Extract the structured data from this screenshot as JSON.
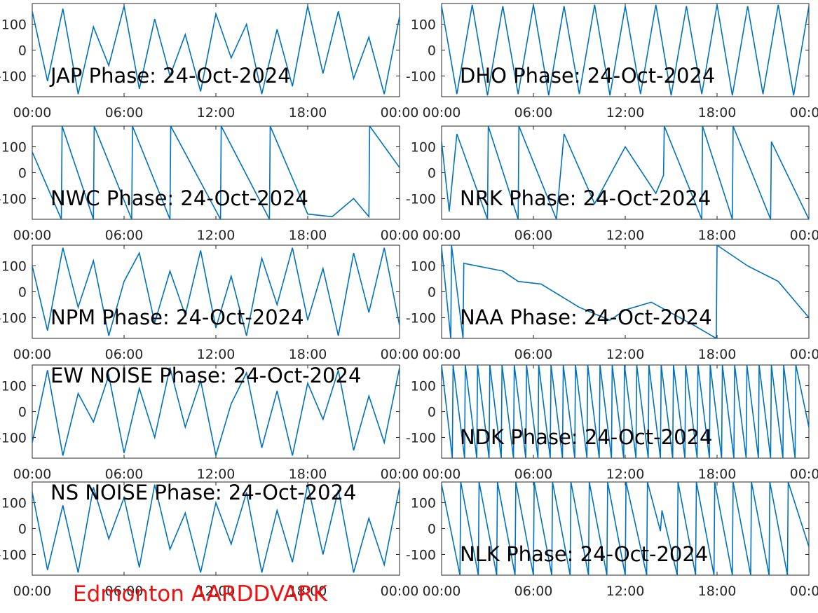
{
  "footer_text": "Edmonton AARDDVARK",
  "footer_color": "#ee1111",
  "line_color": "#0072bd",
  "chart_data": [
    {
      "type": "line",
      "title": "JAP Phase: 24-Oct-2024",
      "x_ticks": [
        "00:00",
        "06:00",
        "12:00",
        "18:00",
        "00:00"
      ],
      "y_ticks": [
        "100",
        "0",
        "-100"
      ],
      "ylim": [
        -180,
        180
      ],
      "x": [
        0,
        1,
        2,
        3,
        4,
        5,
        6,
        7,
        8,
        9,
        10,
        11,
        12,
        13,
        14,
        15,
        16,
        17,
        18,
        19,
        20,
        21,
        22,
        23,
        24
      ],
      "values": [
        150,
        -120,
        160,
        -170,
        90,
        -60,
        170,
        -150,
        120,
        -100,
        60,
        -160,
        140,
        -30,
        100,
        -170,
        80,
        -140,
        170,
        -90,
        150,
        -110,
        50,
        -170,
        130
      ]
    },
    {
      "type": "line",
      "title": "DHO Phase: 24-Oct-2024",
      "x_ticks": [
        "00:00",
        "06:00",
        "12:00",
        "18:00",
        "00:00"
      ],
      "y_ticks": [
        "100",
        "0",
        "-100"
      ],
      "ylim": [
        -180,
        180
      ],
      "x": [
        0,
        1,
        2,
        3,
        4,
        5,
        6,
        7,
        8,
        9,
        10,
        11,
        12,
        13,
        14,
        15,
        16,
        17,
        18,
        19,
        20,
        21,
        22,
        23,
        24
      ],
      "values": [
        170,
        -170,
        175,
        -175,
        170,
        -170,
        175,
        -175,
        170,
        -170,
        175,
        -175,
        170,
        -170,
        175,
        -175,
        170,
        -170,
        175,
        -175,
        170,
        -170,
        175,
        -175,
        170
      ]
    },
    {
      "type": "line",
      "title": "NWC Phase: 24-Oct-2024",
      "x_ticks": [
        "00:00",
        "06:00",
        "12:00",
        "18:00",
        "00:00"
      ],
      "y_ticks": [
        "100",
        "0",
        "-100"
      ],
      "ylim": [
        -180,
        180
      ],
      "x": [
        0,
        1.9,
        1.95,
        4,
        4.05,
        6.5,
        6.55,
        9,
        9.05,
        12.3,
        12.35,
        15.5,
        15.55,
        18,
        19.6,
        21,
        22,
        22.05,
        24
      ],
      "values": [
        80,
        -180,
        180,
        -180,
        180,
        -180,
        180,
        -180,
        180,
        -180,
        180,
        -180,
        180,
        -160,
        -170,
        -100,
        -170,
        180,
        20
      ]
    },
    {
      "type": "line",
      "title": "NRK Phase: 24-Oct-2024",
      "x_ticks": [
        "00:00",
        "06:00",
        "12:00",
        "18:00",
        "00:00"
      ],
      "y_ticks": [
        "100",
        "0",
        "-100"
      ],
      "ylim": [
        -180,
        180
      ],
      "x": [
        0,
        0.5,
        1,
        3,
        3.05,
        5,
        5.05,
        7.5,
        8,
        10,
        12,
        14,
        14.5,
        14.55,
        17,
        17.05,
        19,
        19.05,
        21.5,
        21.55,
        24
      ],
      "values": [
        120,
        -150,
        150,
        -180,
        180,
        -180,
        180,
        -180,
        150,
        -120,
        100,
        -80,
        -10,
        180,
        -180,
        180,
        -180,
        180,
        -180,
        120,
        -180
      ]
    },
    {
      "type": "line",
      "title": "NPM Phase: 24-Oct-2024",
      "x_ticks": [
        "00:00",
        "06:00",
        "12:00",
        "18:00",
        "00:00"
      ],
      "y_ticks": [
        "100",
        "0",
        "-100"
      ],
      "ylim": [
        -180,
        180
      ],
      "x": [
        0,
        1,
        2,
        3,
        4,
        5,
        6,
        7,
        8,
        9,
        10,
        11,
        12,
        13,
        14,
        15,
        16,
        17,
        18,
        19,
        20,
        21,
        22,
        23,
        24
      ],
      "values": [
        100,
        -150,
        170,
        -60,
        120,
        -170,
        40,
        150,
        -120,
        80,
        -90,
        160,
        -140,
        60,
        -170,
        130,
        -50,
        170,
        -110,
        90,
        -170,
        150,
        -80,
        170,
        -130
      ]
    },
    {
      "type": "line",
      "title": "NAA Phase: 24-Oct-2024",
      "x_ticks": [
        "00:00",
        "06:00",
        "12:00",
        "18:00",
        "00:00"
      ],
      "y_ticks": [
        "100",
        "0",
        "-100"
      ],
      "ylim": [
        -180,
        180
      ],
      "x": [
        0,
        0.6,
        0.65,
        1.4,
        1.45,
        4,
        5,
        6.5,
        9,
        11,
        12,
        13.7,
        16.5,
        17.95,
        18,
        20,
        22,
        24
      ],
      "values": [
        170,
        -180,
        180,
        -180,
        110,
        80,
        40,
        30,
        -60,
        -110,
        -70,
        -40,
        -130,
        -180,
        180,
        100,
        40,
        -100
      ]
    },
    {
      "type": "line",
      "title": "EW NOISE Phase: 24-Oct-2024",
      "x_ticks": [
        "00:00",
        "06:00",
        "12:00",
        "18:00",
        "00:00"
      ],
      "y_ticks": [
        "100",
        "0",
        "-100"
      ],
      "ylim": [
        -180,
        180
      ],
      "x": [
        0,
        1,
        2,
        3,
        4,
        5,
        6,
        7,
        8,
        9,
        10,
        11,
        12,
        13,
        14,
        15,
        16,
        17,
        18,
        19,
        20,
        21,
        22,
        23,
        24
      ],
      "values": [
        -120,
        160,
        -170,
        70,
        -40,
        140,
        -160,
        90,
        -100,
        170,
        -60,
        120,
        -170,
        30,
        150,
        -140,
        80,
        -170,
        110,
        -30,
        160,
        -150,
        60,
        -120,
        170
      ]
    },
    {
      "type": "line",
      "title": "NDK Phase: 24-Oct-2024",
      "x_ticks": [
        "00:00",
        "06:00",
        "12:00",
        "18:00",
        "00:00"
      ],
      "y_ticks": [
        "100",
        "0",
        "-100"
      ],
      "ylim": [
        -180,
        180
      ],
      "x": [
        0,
        0.7,
        0.75,
        1.5,
        1.55,
        2.3,
        2.35,
        3.1,
        3.15,
        3.9,
        3.95,
        4.7,
        4.75,
        5.5,
        5.55,
        6.3,
        6.35,
        7.1,
        7.15,
        7.9,
        7.95,
        8.7,
        8.75,
        9.5,
        9.55,
        10.3,
        10.35,
        11.1,
        11.15,
        11.9,
        11.95,
        12.7,
        12.75,
        13.5,
        13.55,
        14.3,
        14.35,
        15.1,
        15.15,
        15.9,
        15.95,
        16.7,
        16.75,
        17.5,
        17.55,
        18.3,
        18.35,
        19.1,
        19.15,
        19.9,
        19.95,
        20.7,
        20.75,
        21.5,
        21.55,
        22.3,
        22.35,
        23.1,
        23.15,
        24
      ],
      "values": [
        180,
        -180,
        180,
        -180,
        180,
        -180,
        180,
        -180,
        180,
        -180,
        180,
        -180,
        180,
        -180,
        180,
        -180,
        180,
        -180,
        180,
        -180,
        180,
        -180,
        180,
        -180,
        180,
        -180,
        180,
        -180,
        180,
        -180,
        180,
        -180,
        180,
        -180,
        180,
        -180,
        180,
        -180,
        180,
        -180,
        180,
        -180,
        180,
        -180,
        180,
        -180,
        180,
        -180,
        180,
        -180,
        180,
        -180,
        180,
        -180,
        180,
        -180,
        180,
        -180,
        180,
        -60
      ]
    },
    {
      "type": "line",
      "title": "NS NOISE Phase: 24-Oct-2024",
      "x_ticks": [
        "00:00",
        "06:00",
        "12:00",
        "18:00",
        "00:00"
      ],
      "y_ticks": [
        "100",
        "0",
        "-100"
      ],
      "ylim": [
        -180,
        180
      ],
      "x": [
        0,
        1,
        2,
        3,
        4,
        5,
        6,
        7,
        8,
        9,
        10,
        11,
        12,
        13,
        14,
        15,
        16,
        17,
        18,
        19,
        20,
        21,
        22,
        23,
        24
      ],
      "values": [
        140,
        -160,
        90,
        -170,
        160,
        -40,
        120,
        -150,
        170,
        -80,
        60,
        -170,
        100,
        -60,
        140,
        -170,
        70,
        -130,
        170,
        -100,
        150,
        -170,
        40,
        -140,
        160
      ]
    },
    {
      "type": "line",
      "title": "NLK Phase: 24-Oct-2024",
      "x_ticks": [
        "00:00",
        "06:00",
        "12:00",
        "18:00",
        "00:00"
      ],
      "y_ticks": [
        "100",
        "0",
        "-100"
      ],
      "ylim": [
        -180,
        180
      ],
      "x": [
        0,
        1.2,
        1.25,
        2.4,
        2.45,
        3.6,
        3.65,
        4.8,
        4.85,
        6,
        6.05,
        7.2,
        7.25,
        8.4,
        8.45,
        9.6,
        9.65,
        10.8,
        10.85,
        12,
        12.05,
        13.4,
        13.45,
        14.3,
        14.4,
        15.4,
        15.45,
        16.6,
        16.65,
        17.8,
        17.85,
        19,
        19.05,
        20.2,
        20.25,
        21.4,
        21.45,
        22.6,
        22.65,
        24
      ],
      "values": [
        170,
        -180,
        180,
        -180,
        180,
        -180,
        180,
        -180,
        180,
        -180,
        180,
        -180,
        180,
        -180,
        180,
        -180,
        180,
        -180,
        180,
        -180,
        180,
        -180,
        180,
        -10,
        70,
        -180,
        180,
        -180,
        180,
        -180,
        180,
        -180,
        180,
        -180,
        180,
        -180,
        180,
        -180,
        180,
        -70
      ]
    }
  ]
}
